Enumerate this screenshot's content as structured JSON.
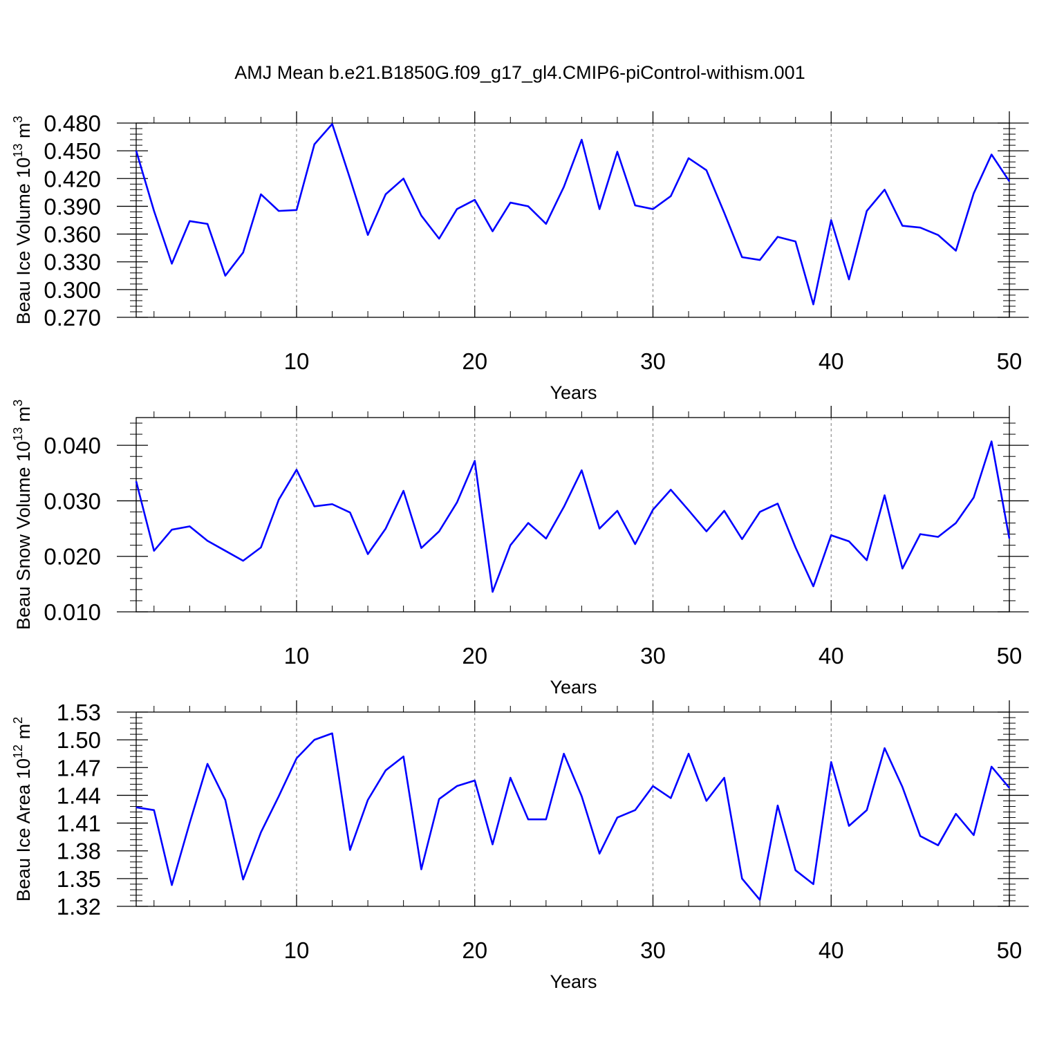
{
  "title": "AMJ Mean b.e21.B1850G.f09_g17_gl4.CMIP6-piControl-withism.001",
  "colors": {
    "line": "#0000ff"
  },
  "chart_data": [
    {
      "type": "line",
      "ylabel": "Beau Ice Volume 10",
      "ylabel_exp": "13",
      "ylabel_unit": " m",
      "ylabel_unit_exp": "3",
      "xlabel": "Years",
      "xlim": [
        1,
        50
      ],
      "ylim": [
        0.27,
        0.48
      ],
      "xticks": [
        10,
        20,
        30,
        40,
        50
      ],
      "xtick_labels": [
        "10",
        "20",
        "30",
        "40",
        "50"
      ],
      "yticks": [
        0.27,
        0.3,
        0.33,
        0.36,
        0.39,
        0.42,
        0.45,
        0.48
      ],
      "ytick_labels": [
        "0.270",
        "0.300",
        "0.330",
        "0.360",
        "0.390",
        "0.420",
        "0.450",
        "0.480"
      ],
      "grid_x": [
        10,
        20,
        30,
        40
      ],
      "x": [
        1,
        2,
        3,
        4,
        5,
        6,
        7,
        8,
        9,
        10,
        11,
        12,
        13,
        14,
        15,
        16,
        17,
        18,
        19,
        20,
        21,
        22,
        23,
        24,
        25,
        26,
        27,
        28,
        29,
        30,
        31,
        32,
        33,
        34,
        35,
        36,
        37,
        38,
        39,
        40,
        41,
        42,
        43,
        44,
        45,
        46,
        47,
        48,
        49,
        50
      ],
      "series": [
        {
          "values": [
            0.45,
            0.385,
            0.328,
            0.374,
            0.371,
            0.315,
            0.34,
            0.403,
            0.385,
            0.386,
            0.457,
            0.479,
            0.42,
            0.359,
            0.403,
            0.42,
            0.38,
            0.355,
            0.387,
            0.397,
            0.363,
            0.394,
            0.39,
            0.371,
            0.411,
            0.462,
            0.387,
            0.449,
            0.391,
            0.387,
            0.401,
            0.442,
            0.429,
            0.383,
            0.335,
            0.332,
            0.357,
            0.352,
            0.284,
            0.375,
            0.311,
            0.385,
            0.408,
            0.369,
            0.367,
            0.359,
            0.342,
            0.404,
            0.446,
            0.417
          ]
        }
      ]
    },
    {
      "type": "line",
      "ylabel": "Beau Snow Volume 10",
      "ylabel_exp": "13",
      "ylabel_unit": " m",
      "ylabel_unit_exp": "3",
      "xlabel": "Years",
      "xlim": [
        1,
        50
      ],
      "ylim": [
        0.01,
        0.045
      ],
      "xticks": [
        10,
        20,
        30,
        40,
        50
      ],
      "xtick_labels": [
        "10",
        "20",
        "30",
        "40",
        "50"
      ],
      "yticks": [
        0.01,
        0.02,
        0.03,
        0.04
      ],
      "ytick_labels": [
        "0.010",
        "0.020",
        "0.030",
        "0.040"
      ],
      "grid_x": [
        10,
        20,
        30,
        40
      ],
      "x": [
        1,
        2,
        3,
        4,
        5,
        6,
        7,
        8,
        9,
        10,
        11,
        12,
        13,
        14,
        15,
        16,
        17,
        18,
        19,
        20,
        21,
        22,
        23,
        24,
        25,
        26,
        27,
        28,
        29,
        30,
        31,
        32,
        33,
        34,
        35,
        36,
        37,
        38,
        39,
        40,
        41,
        42,
        43,
        44,
        45,
        46,
        47,
        48,
        49,
        50
      ],
      "series": [
        {
          "values": [
            0.0335,
            0.021,
            0.0248,
            0.0254,
            0.0228,
            0.021,
            0.0192,
            0.0216,
            0.0302,
            0.0356,
            0.029,
            0.0294,
            0.0279,
            0.0204,
            0.025,
            0.0318,
            0.0215,
            0.0245,
            0.0297,
            0.0372,
            0.0136,
            0.022,
            0.026,
            0.0232,
            0.0289,
            0.0355,
            0.025,
            0.0282,
            0.0222,
            0.0284,
            0.032,
            0.0283,
            0.0245,
            0.0282,
            0.0231,
            0.028,
            0.0295,
            0.0216,
            0.0146,
            0.0238,
            0.0227,
            0.0193,
            0.031,
            0.0178,
            0.024,
            0.0235,
            0.026,
            0.0306,
            0.0407,
            0.0232
          ]
        }
      ]
    },
    {
      "type": "line",
      "ylabel": "Beau Ice Area 10",
      "ylabel_exp": "12",
      "ylabel_unit": " m",
      "ylabel_unit_exp": "2",
      "xlabel": "Years",
      "xlim": [
        1,
        50
      ],
      "ylim": [
        1.32,
        1.53
      ],
      "xticks": [
        10,
        20,
        30,
        40,
        50
      ],
      "xtick_labels": [
        "10",
        "20",
        "30",
        "40",
        "50"
      ],
      "yticks": [
        1.32,
        1.35,
        1.38,
        1.41,
        1.44,
        1.47,
        1.5,
        1.53
      ],
      "ytick_labels": [
        "1.32",
        "1.35",
        "1.38",
        "1.41",
        "1.44",
        "1.47",
        "1.50",
        "1.53"
      ],
      "grid_x": [
        10,
        20,
        30,
        40
      ],
      "x": [
        1,
        2,
        3,
        4,
        5,
        6,
        7,
        8,
        9,
        10,
        11,
        12,
        13,
        14,
        15,
        16,
        17,
        18,
        19,
        20,
        21,
        22,
        23,
        24,
        25,
        26,
        27,
        28,
        29,
        30,
        31,
        32,
        33,
        34,
        35,
        36,
        37,
        38,
        39,
        40,
        41,
        42,
        43,
        44,
        45,
        46,
        47,
        48,
        49,
        50
      ],
      "series": [
        {
          "values": [
            1.427,
            1.424,
            1.343,
            1.41,
            1.474,
            1.435,
            1.349,
            1.4,
            1.439,
            1.48,
            1.5,
            1.507,
            1.381,
            1.435,
            1.467,
            1.482,
            1.36,
            1.436,
            1.45,
            1.456,
            1.387,
            1.459,
            1.414,
            1.414,
            1.485,
            1.439,
            1.377,
            1.416,
            1.424,
            1.45,
            1.437,
            1.485,
            1.434,
            1.459,
            1.35,
            1.327,
            1.429,
            1.359,
            1.344,
            1.476,
            1.407,
            1.424,
            1.491,
            1.449,
            1.396,
            1.386,
            1.42,
            1.397,
            1.471,
            1.448
          ]
        }
      ]
    }
  ]
}
